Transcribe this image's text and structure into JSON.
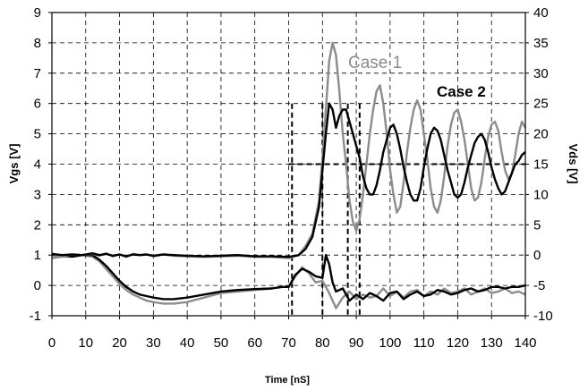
{
  "chart_data": {
    "type": "line",
    "xlabel": "Time [nS]",
    "ylabel": "Vgs [V]",
    "y2label": "Vds [V]",
    "xlim": [
      0,
      140
    ],
    "ylim": [
      -1,
      9
    ],
    "y2lim": [
      -10,
      40
    ],
    "x_ticks": [
      0,
      10,
      20,
      30,
      40,
      50,
      60,
      70,
      80,
      90,
      100,
      110,
      120,
      130,
      140
    ],
    "y_ticks": [
      -1,
      0,
      1,
      2,
      3,
      4,
      5,
      6,
      7,
      8,
      9
    ],
    "y2_ticks": [
      -10,
      -5,
      0,
      5,
      10,
      15,
      20,
      25,
      30,
      35,
      40
    ],
    "grid": "dashed",
    "annotations": [
      {
        "text": "Case 1",
        "x": 97,
        "y": 7.6,
        "color": "#8c8c8c"
      },
      {
        "text": "Case 2",
        "x": 120,
        "y": 6.55,
        "color": "#000000"
      }
    ],
    "reference_lines": {
      "vertical_x": [
        71,
        80,
        87.5,
        91
      ],
      "vertical_top_y": 6,
      "horizontal_y": 4,
      "horizontal_from_x": 70
    },
    "series": [
      {
        "color": "#8c8c8c",
        "axis": "left",
        "x": [
          0,
          3,
          6,
          9,
          12,
          14,
          16,
          18,
          20,
          22,
          24,
          26,
          28,
          30,
          33,
          36,
          40,
          45,
          50,
          55,
          60,
          65,
          68,
          70,
          72,
          74,
          76,
          78,
          80,
          82,
          84,
          86,
          88,
          90,
          92,
          94,
          96,
          98,
          100,
          102,
          104,
          106,
          108,
          110,
          112,
          114,
          116,
          118,
          120,
          122,
          124,
          126,
          128,
          130,
          132,
          134,
          136,
          138,
          140
        ],
        "y": [
          0.9,
          0.95,
          0.95,
          1.0,
          0.95,
          0.8,
          0.55,
          0.3,
          0.05,
          -0.15,
          -0.3,
          -0.4,
          -0.5,
          -0.55,
          -0.6,
          -0.6,
          -0.55,
          -0.4,
          -0.25,
          -0.2,
          -0.15,
          -0.1,
          -0.05,
          -0.05,
          0.3,
          0.6,
          0.4,
          0.1,
          0.15,
          -0.25,
          -0.75,
          -0.4,
          -0.2,
          -0.45,
          -0.3,
          -0.4,
          -0.35,
          -0.1,
          -0.35,
          -0.2,
          -0.4,
          -0.2,
          -0.15,
          -0.35,
          -0.2,
          -0.3,
          -0.1,
          -0.25,
          -0.2,
          -0.1,
          -0.3,
          -0.2,
          -0.1,
          -0.25,
          -0.2,
          -0.1,
          -0.25,
          -0.2,
          -0.3
        ]
      },
      {
        "color": "#000000",
        "axis": "left",
        "x": [
          0,
          3,
          6,
          9,
          12,
          14,
          16,
          18,
          20,
          22,
          24,
          26,
          28,
          30,
          33,
          36,
          40,
          45,
          50,
          55,
          60,
          65,
          68,
          70,
          72,
          74,
          76,
          78,
          80,
          81,
          82,
          83,
          84,
          86,
          88,
          90,
          92,
          94,
          96,
          98,
          100,
          102,
          104,
          106,
          108,
          110,
          112,
          114,
          116,
          118,
          120,
          122,
          124,
          126,
          128,
          130,
          132,
          134,
          136,
          138,
          140
        ],
        "y": [
          1.0,
          1.0,
          0.95,
          1.0,
          1.0,
          0.85,
          0.65,
          0.4,
          0.15,
          -0.05,
          -0.2,
          -0.3,
          -0.35,
          -0.4,
          -0.45,
          -0.45,
          -0.4,
          -0.3,
          -0.2,
          -0.15,
          -0.12,
          -0.1,
          -0.05,
          -0.05,
          0.35,
          0.55,
          0.45,
          0.3,
          0.25,
          1.0,
          0.7,
          0.1,
          -0.2,
          -0.1,
          -0.5,
          -0.3,
          -0.45,
          -0.25,
          -0.35,
          -0.5,
          -0.25,
          -0.2,
          -0.45,
          -0.3,
          -0.2,
          -0.35,
          -0.3,
          -0.15,
          -0.2,
          -0.3,
          -0.25,
          -0.15,
          -0.1,
          -0.2,
          -0.15,
          -0.05,
          -0.05,
          -0.1,
          -0.05,
          -0.05,
          0.0
        ]
      },
      {
        "color": "#8c8c8c",
        "axis": "right",
        "x": [
          0,
          3,
          6,
          9,
          12,
          14,
          16,
          18,
          20,
          22,
          24,
          26,
          28,
          30,
          33,
          36,
          40,
          45,
          50,
          55,
          60,
          65,
          70,
          73,
          75,
          77,
          79,
          80,
          81,
          82,
          83,
          84,
          85,
          86,
          87,
          88,
          89,
          90,
          91,
          92,
          93,
          94,
          95,
          96,
          97,
          98,
          99,
          100,
          101,
          102,
          103,
          104,
          105,
          106,
          107,
          108,
          109,
          110,
          111,
          112,
          113,
          114,
          115,
          116,
          117,
          118,
          119,
          120,
          121,
          122,
          123,
          124,
          125,
          126,
          127,
          128,
          129,
          130,
          131,
          132,
          133,
          134,
          135,
          136,
          137,
          138,
          139,
          140
        ],
        "y": [
          0.2,
          -0.2,
          0.1,
          0.0,
          0.2,
          -0.1,
          0.3,
          -0.2,
          0.1,
          -0.3,
          0.2,
          0.0,
          0.1,
          -0.2,
          0.1,
          -0.1,
          -0.2,
          -0.3,
          -0.2,
          -0.1,
          -0.3,
          -0.3,
          -0.5,
          0.0,
          1.5,
          3.5,
          9.0,
          16.0,
          24.0,
          32.0,
          35.0,
          33.0,
          27.0,
          20.0,
          15.0,
          9.0,
          5.5,
          4.0,
          6.0,
          10.0,
          15.0,
          20.0,
          24.0,
          27.0,
          28.0,
          25.0,
          20.0,
          14.0,
          10.0,
          7.0,
          8.0,
          12.0,
          17.0,
          21.0,
          24.0,
          25.5,
          24.0,
          20.0,
          16.0,
          11.0,
          8.0,
          7.0,
          9.0,
          13.0,
          18.0,
          21.5,
          23.5,
          24.0,
          22.0,
          19.0,
          15.0,
          11.0,
          9.0,
          9.5,
          12.0,
          16.0,
          19.5,
          21.5,
          22.0,
          20.5,
          17.0,
          14.0,
          12.5,
          13.5,
          16.5,
          20.0,
          22.0,
          21.0
        ]
      },
      {
        "color": "#000000",
        "axis": "right",
        "x": [
          0,
          3,
          6,
          9,
          12,
          14,
          16,
          18,
          20,
          22,
          24,
          26,
          28,
          30,
          33,
          36,
          40,
          45,
          50,
          55,
          60,
          65,
          70,
          73,
          75,
          77,
          79,
          80,
          81,
          82,
          83,
          84,
          85,
          86,
          87,
          88,
          89,
          90,
          91,
          92,
          93,
          94,
          95,
          96,
          97,
          98,
          99,
          100,
          101,
          102,
          103,
          104,
          105,
          106,
          107,
          108,
          109,
          110,
          111,
          112,
          113,
          114,
          115,
          116,
          117,
          118,
          119,
          120,
          121,
          122,
          123,
          124,
          125,
          126,
          127,
          128,
          129,
          130,
          131,
          132,
          133,
          134,
          135,
          136,
          137,
          138,
          139,
          140
        ],
        "y": [
          0.2,
          0.0,
          0.1,
          0.0,
          0.3,
          0.0,
          0.2,
          -0.1,
          0.1,
          -0.2,
          0.1,
          0.0,
          0.1,
          -0.1,
          0.1,
          0.0,
          -0.1,
          -0.2,
          -0.1,
          0.0,
          -0.2,
          -0.2,
          -0.3,
          0.0,
          1.0,
          3.0,
          8.0,
          14.0,
          20.0,
          25.0,
          24.0,
          21.0,
          23.0,
          24.0,
          24.0,
          22.0,
          20.0,
          18.0,
          16.0,
          13.0,
          11.0,
          10.0,
          10.0,
          11.5,
          14.0,
          17.0,
          19.0,
          21.0,
          21.5,
          20.0,
          17.5,
          14.5,
          12.0,
          10.0,
          9.0,
          9.0,
          11.0,
          14.5,
          17.5,
          20.0,
          21.0,
          20.5,
          19.0,
          16.5,
          14.0,
          12.0,
          10.0,
          9.5,
          10.0,
          12.0,
          14.5,
          16.5,
          18.5,
          19.5,
          20.0,
          19.0,
          17.0,
          14.5,
          12.5,
          11.0,
          10.0,
          10.5,
          12.0,
          13.5,
          15.0,
          15.5,
          16.5,
          17.0
        ]
      }
    ]
  }
}
